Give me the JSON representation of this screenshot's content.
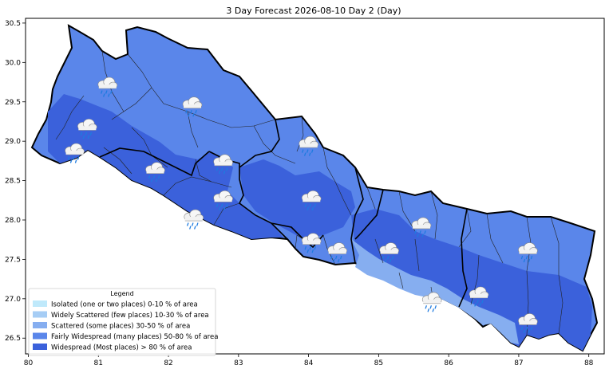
{
  "title": "3 Day Forecast 2026-08-10 Day 2 (Day)",
  "axes": {
    "x_ticks": [
      "80",
      "81",
      "82",
      "83",
      "84",
      "85",
      "86",
      "87",
      "88"
    ],
    "y_ticks": [
      "30.5",
      "30.0",
      "29.5",
      "29.0",
      "28.5",
      "28.0",
      "27.5",
      "27.0",
      "26.5"
    ],
    "x_range": [
      79.96,
      88.22
    ],
    "y_range": [
      26.3,
      30.56
    ]
  },
  "legend": {
    "title": "Legend",
    "items": [
      {
        "label": "Isolated (one or two places)  0-10 % of area",
        "color": "#bfe9fb"
      },
      {
        "label": "Widely Scattered (few places)  10-30 % of area",
        "color": "#a6cdf5"
      },
      {
        "label": "Scattered (some places)  30-50 % of area",
        "color": "#86aef0"
      },
      {
        "label": "Fairly Widespread (many places)  50-80 % of area",
        "color": "#5a86ea"
      },
      {
        "label": "Widespread (Most places) > 80 % of area",
        "color": "#3b61db"
      }
    ]
  },
  "colors": {
    "fairly_widespread": "#5a86ea",
    "widespread": "#3b61db",
    "scattered": "#86aef0",
    "border": "#000000"
  },
  "icons": {
    "name": "rain-cloud-icon",
    "locations": [
      {
        "lon": 81.12,
        "lat": 29.7
      },
      {
        "lon": 82.33,
        "lat": 29.45
      },
      {
        "lon": 80.83,
        "lat": 29.17
      },
      {
        "lon": 80.65,
        "lat": 28.86
      },
      {
        "lon": 81.8,
        "lat": 28.62
      },
      {
        "lon": 82.77,
        "lat": 28.72
      },
      {
        "lon": 83.99,
        "lat": 28.95
      },
      {
        "lon": 82.77,
        "lat": 28.26
      },
      {
        "lon": 82.35,
        "lat": 28.02
      },
      {
        "lon": 84.03,
        "lat": 28.26
      },
      {
        "lon": 84.03,
        "lat": 27.72
      },
      {
        "lon": 84.4,
        "lat": 27.6
      },
      {
        "lon": 85.14,
        "lat": 27.6
      },
      {
        "lon": 85.6,
        "lat": 27.92
      },
      {
        "lon": 87.12,
        "lat": 27.6
      },
      {
        "lon": 86.42,
        "lat": 27.04
      },
      {
        "lon": 85.75,
        "lat": 26.97
      },
      {
        "lon": 87.12,
        "lat": 26.7
      }
    ]
  }
}
